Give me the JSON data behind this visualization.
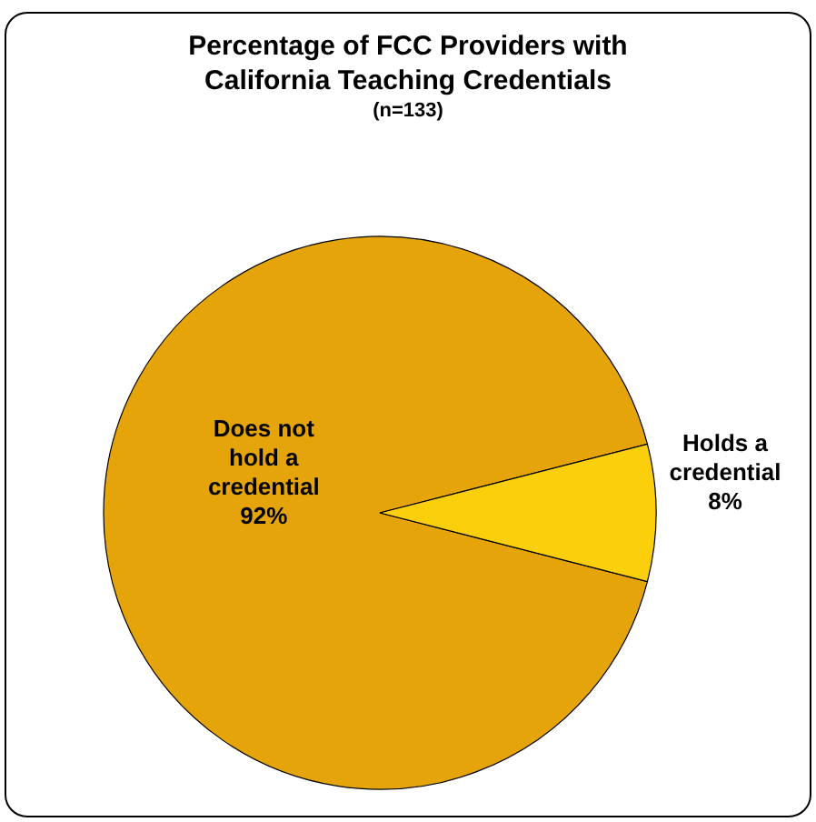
{
  "chart_data": {
    "type": "pie",
    "title": "Percentage of FCC Providers with California Teaching Credentials",
    "subtitle": "(n=133)",
    "categories": [
      "Does not hold a credential",
      "Holds a credential"
    ],
    "values": [
      92,
      8
    ],
    "colors": [
      "#e5a50a",
      "#fccf0c"
    ],
    "value_labels": [
      "92%",
      "8%"
    ]
  }
}
